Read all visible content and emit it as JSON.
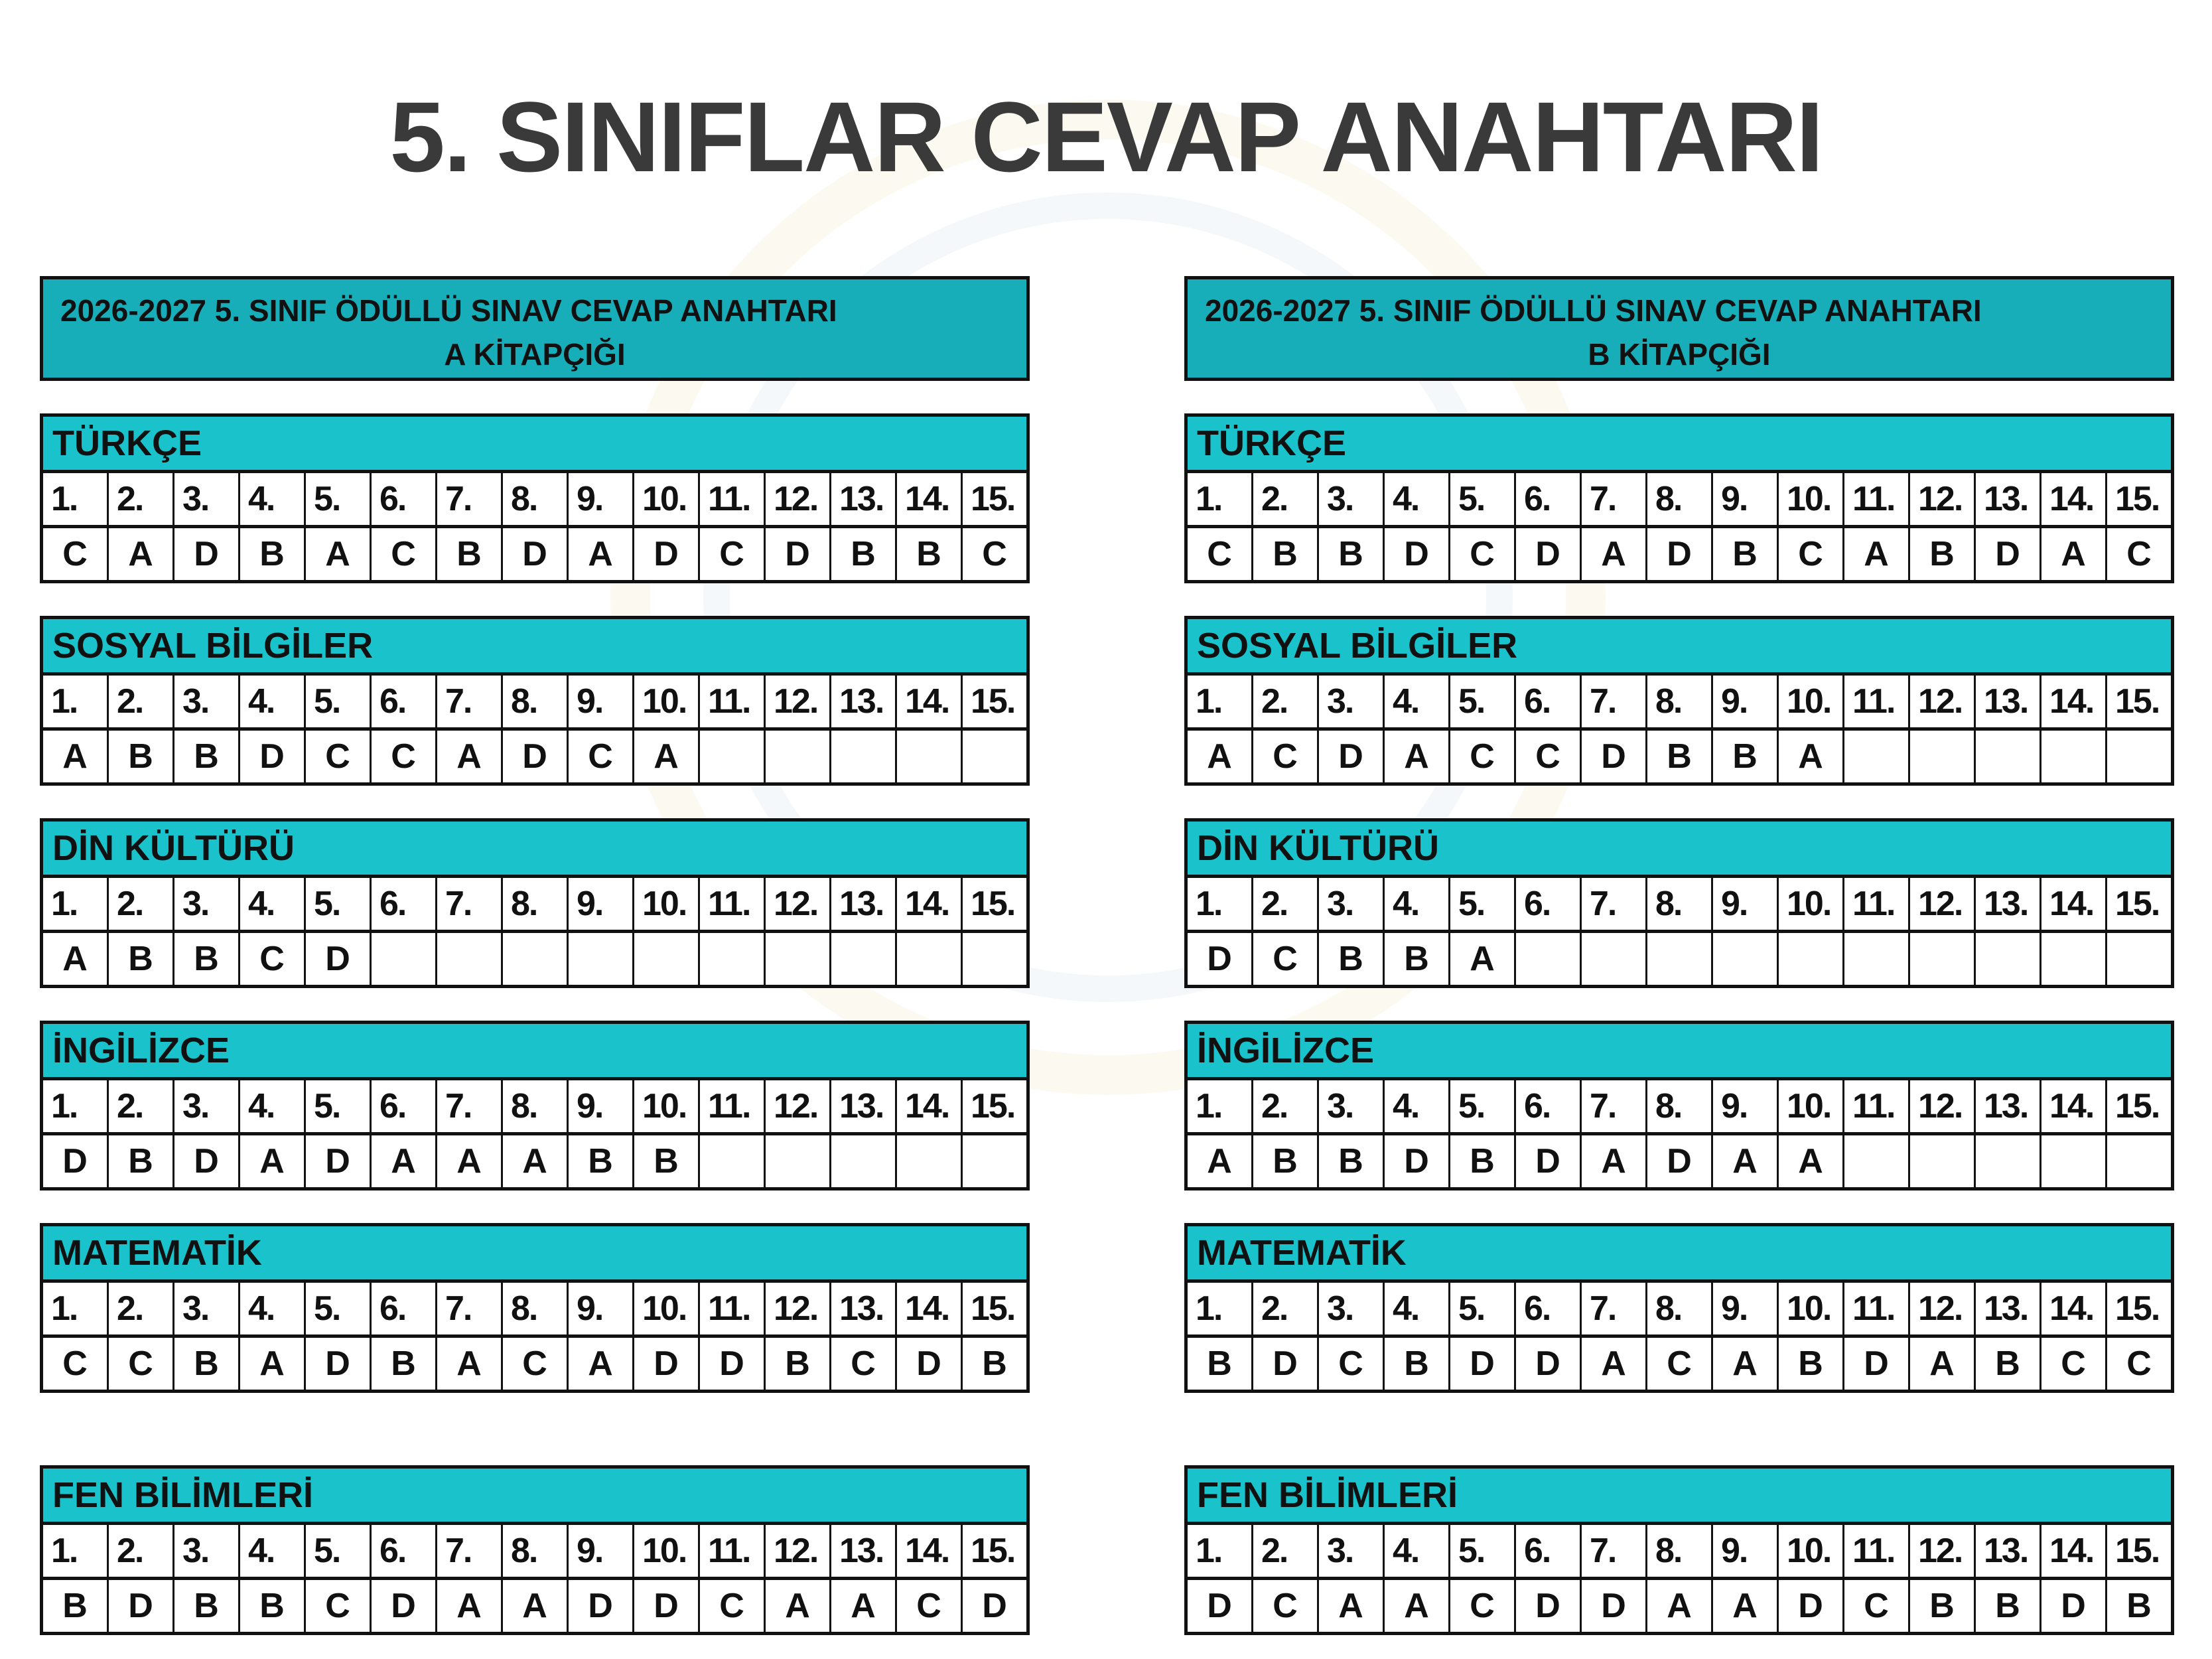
{
  "title": "5. SINIFLAR CEVAP ANAHTARI",
  "question_numbers": [
    "1.",
    "2.",
    "3.",
    "4.",
    "5.",
    "6.",
    "7.",
    "8.",
    "9.",
    "10.",
    "11.",
    "12.",
    "13.",
    "14.",
    "15."
  ],
  "booklets": [
    {
      "header_line1": "2026-2027 5. SINIF ÖDÜLLÜ SINAV CEVAP ANAHTARI",
      "header_line2": "A KİTAPÇIĞI",
      "sections": [
        {
          "name": "TÜRKÇE",
          "answers": [
            "C",
            "A",
            "D",
            "B",
            "A",
            "C",
            "B",
            "D",
            "A",
            "D",
            "C",
            "D",
            "B",
            "B",
            "C"
          ]
        },
        {
          "name": "SOSYAL BİLGİLER",
          "answers": [
            "A",
            "B",
            "B",
            "D",
            "C",
            "C",
            "A",
            "D",
            "C",
            "A",
            "",
            "",
            "",
            "",
            ""
          ]
        },
        {
          "name": "DİN KÜLTÜRÜ",
          "answers": [
            "A",
            "B",
            "B",
            "C",
            "D",
            "",
            "",
            "",
            "",
            "",
            "",
            "",
            "",
            "",
            ""
          ]
        },
        {
          "name": "İNGİLİZCE",
          "answers": [
            "D",
            "B",
            "D",
            "A",
            "D",
            "A",
            "A",
            "A",
            "B",
            "B",
            "",
            "",
            "",
            "",
            ""
          ]
        },
        {
          "name": "MATEMATİK",
          "answers": [
            "C",
            "C",
            "B",
            "A",
            "D",
            "B",
            "A",
            "C",
            "A",
            "D",
            "D",
            "B",
            "C",
            "D",
            "B"
          ]
        },
        {
          "name": "FEN BİLİMLERİ",
          "answers": [
            "B",
            "D",
            "B",
            "B",
            "C",
            "D",
            "A",
            "A",
            "D",
            "D",
            "C",
            "A",
            "A",
            "C",
            "D"
          ]
        }
      ]
    },
    {
      "header_line1": "2026-2027 5. SINIF ÖDÜLLÜ SINAV CEVAP ANAHTARI",
      "header_line2": "B KİTAPÇIĞI",
      "sections": [
        {
          "name": "TÜRKÇE",
          "answers": [
            "C",
            "B",
            "B",
            "D",
            "C",
            "D",
            "A",
            "D",
            "B",
            "C",
            "A",
            "B",
            "D",
            "A",
            "C"
          ]
        },
        {
          "name": "SOSYAL BİLGİLER",
          "answers": [
            "A",
            "C",
            "D",
            "A",
            "C",
            "C",
            "D",
            "B",
            "B",
            "A",
            "",
            "",
            "",
            "",
            ""
          ]
        },
        {
          "name": "DİN KÜLTÜRÜ",
          "answers": [
            "D",
            "C",
            "B",
            "B",
            "A",
            "",
            "",
            "",
            "",
            "",
            "",
            "",
            "",
            "",
            ""
          ]
        },
        {
          "name": "İNGİLİZCE",
          "answers": [
            "A",
            "B",
            "B",
            "D",
            "B",
            "D",
            "A",
            "D",
            "A",
            "A",
            "",
            "",
            "",
            "",
            ""
          ]
        },
        {
          "name": "MATEMATİK",
          "answers": [
            "B",
            "D",
            "C",
            "B",
            "D",
            "D",
            "A",
            "C",
            "A",
            "B",
            "D",
            "A",
            "B",
            "C",
            "C"
          ]
        },
        {
          "name": "FEN BİLİMLERİ",
          "answers": [
            "D",
            "C",
            "A",
            "A",
            "C",
            "D",
            "D",
            "A",
            "A",
            "D",
            "C",
            "B",
            "B",
            "D",
            "B"
          ]
        }
      ]
    }
  ]
}
